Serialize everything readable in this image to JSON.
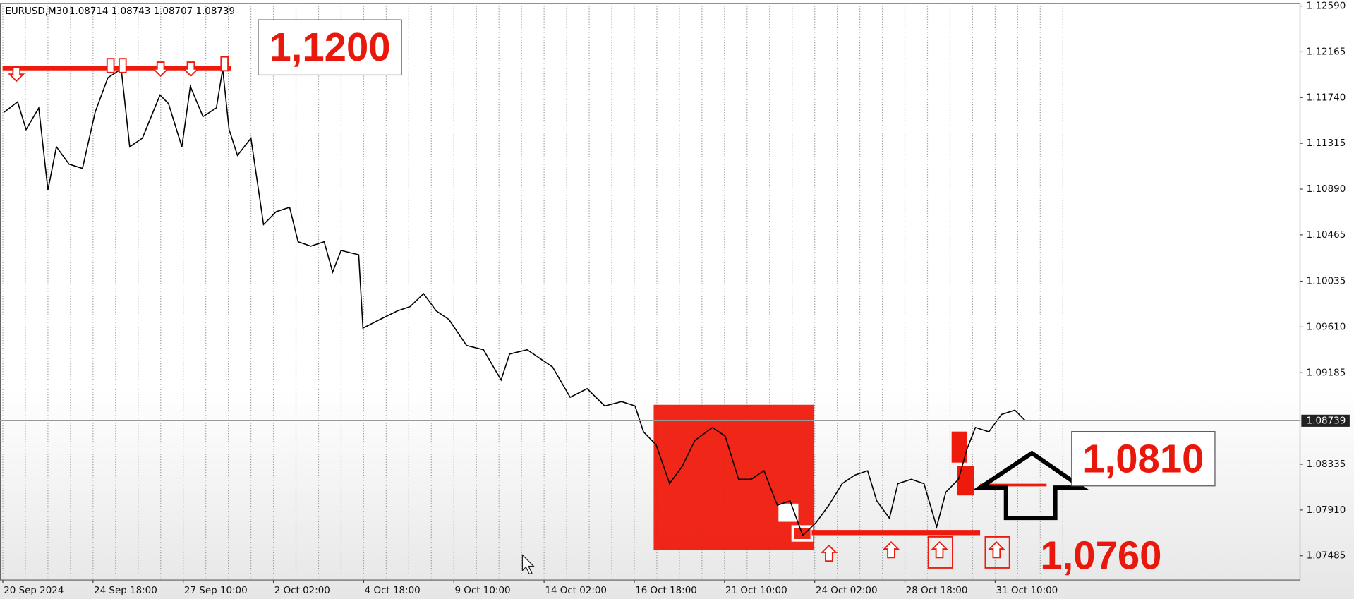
{
  "header": {
    "symbol": "EURUSD,M30",
    "ohlc": "1.08714 1.08743 1.08707 1.08739"
  },
  "annotations": {
    "top_level": "1,1200",
    "mid_level": "1,0810",
    "low_level": "1,0760"
  },
  "current_price": {
    "value": 1.08739,
    "label": "1.08739"
  },
  "chart_data": {
    "type": "line",
    "color": "#000000",
    "grid": true,
    "xlim": [
      -4,
      1840
    ],
    "ylim": [
      1.0726,
      1.12614
    ],
    "xticks": [
      {
        "value": 0,
        "label": "20 Sep 2024"
      },
      {
        "value": 128,
        "label": "24 Sep 18:00"
      },
      {
        "value": 256,
        "label": "27 Sep 10:00"
      },
      {
        "value": 384,
        "label": "2 Oct 02:00"
      },
      {
        "value": 512,
        "label": "4 Oct 18:00"
      },
      {
        "value": 640,
        "label": "9 Oct 10:00"
      },
      {
        "value": 768,
        "label": "14 Oct 02:00"
      },
      {
        "value": 896,
        "label": "16 Oct 18:00"
      },
      {
        "value": 1024,
        "label": "21 Oct 10:00"
      },
      {
        "value": 1152,
        "label": "24 Oct 02:00"
      },
      {
        "value": 1280,
        "label": "28 Oct 18:00"
      },
      {
        "value": 1408,
        "label": "31 Oct 10:00"
      }
    ],
    "yticks": [
      {
        "value": 1.1259,
        "label": "1.12590"
      },
      1.12165,
      {
        "value": 1.1174,
        "label": "1.11740"
      },
      1.11315,
      {
        "value": 1.1089,
        "label": "1.10890"
      },
      1.10465,
      1.10035,
      {
        "value": 1.0961,
        "label": "1.09610"
      },
      1.09185,
      1.08335,
      {
        "value": 1.0791,
        "label": "1.07910"
      },
      1.07485
    ],
    "x": [
      2,
      21,
      33,
      51,
      64,
      76,
      94,
      113,
      131,
      149,
      168,
      180,
      198,
      223,
      235,
      254,
      266,
      284,
      303,
      312,
      321,
      333,
      352,
      370,
      388,
      407,
      419,
      437,
      456,
      468,
      480,
      505,
      511,
      535,
      560,
      578,
      597,
      615,
      633,
      658,
      682,
      707,
      719,
      744,
      762,
      780,
      805,
      829,
      854,
      878,
      897,
      909,
      927,
      946,
      964,
      982,
      1007,
      1025,
      1044,
      1062,
      1080,
      1099,
      1117,
      1135,
      1154,
      1172,
      1191,
      1209,
      1227,
      1240,
      1258,
      1270,
      1289,
      1307,
      1325,
      1338,
      1356,
      1368,
      1380,
      1399,
      1417,
      1436,
      1451
    ],
    "values": [
      1.11604,
      1.117,
      1.11443,
      1.11644,
      1.10882,
      1.11283,
      1.11122,
      1.11082,
      1.11604,
      1.11924,
      1.12005,
      1.11283,
      1.11363,
      1.11764,
      1.11684,
      1.11283,
      1.11844,
      1.11563,
      1.11644,
      1.12005,
      1.11443,
      1.11203,
      1.11363,
      1.10561,
      1.10681,
      1.10721,
      1.10401,
      1.1036,
      1.10401,
      1.1012,
      1.1032,
      1.1028,
      1.09599,
      1.09679,
      1.09759,
      1.09799,
      1.09919,
      1.09759,
      1.09679,
      1.09438,
      1.09398,
      1.09117,
      1.09358,
      1.09398,
      1.09318,
      1.09238,
      1.08957,
      1.09037,
      1.08877,
      1.08917,
      1.08877,
      1.08636,
      1.08516,
      1.08155,
      1.08315,
      1.08556,
      1.08676,
      1.08596,
      1.08195,
      1.08195,
      1.08275,
      1.07954,
      1.07995,
      1.07674,
      1.07794,
      1.07954,
      1.08155,
      1.08235,
      1.08275,
      1.07995,
      1.07834,
      1.08155,
      1.08195,
      1.08155,
      1.07754,
      1.08075,
      1.08195,
      1.08476,
      1.08676,
      1.08636,
      1.08797,
      1.08837,
      1.08739
    ]
  }
}
